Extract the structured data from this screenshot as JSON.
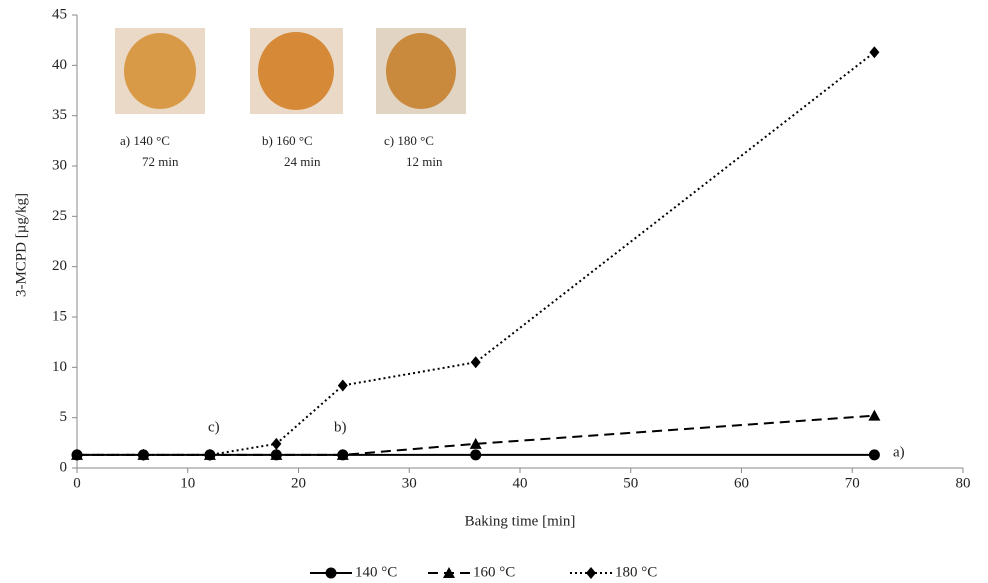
{
  "chart_data": {
    "type": "line",
    "x": [
      0,
      6,
      12,
      18,
      24,
      36,
      72
    ],
    "series": [
      {
        "name": "140 °C",
        "color": "#000000",
        "dash": "solid",
        "marker": "circle",
        "values": [
          1.3,
          1.3,
          1.3,
          1.3,
          1.3,
          1.3,
          1.3
        ]
      },
      {
        "name": "160 °C",
        "color": "#000000",
        "dash": "dashed",
        "marker": "triangle",
        "values": [
          1.3,
          1.3,
          1.3,
          1.3,
          1.3,
          2.4,
          5.2
        ]
      },
      {
        "name": "180 °C",
        "color": "#000000",
        "dash": "dotted",
        "marker": "diamond",
        "values": [
          1.3,
          1.3,
          1.3,
          2.4,
          8.2,
          10.5,
          41.3
        ]
      }
    ],
    "xlabel": "Baking time [min]",
    "ylabel": "3-MCPD [µg/kg]",
    "xlim": [
      0,
      80
    ],
    "xticks": [
      0,
      10,
      20,
      30,
      40,
      50,
      60,
      70,
      80
    ],
    "ylim": [
      0,
      45
    ],
    "yticks": [
      0,
      5,
      10,
      15,
      20,
      25,
      30,
      35,
      40,
      45
    ],
    "grid": false,
    "legend": "bottom",
    "annotations": [
      "a)",
      "b)",
      "c)"
    ],
    "insets": [
      {
        "label": "a) 140 °C",
        "time": "72 min"
      },
      {
        "label": "b) 160 °C",
        "time": "24 min"
      },
      {
        "label": "c) 180 °C",
        "time": "12 min"
      }
    ]
  }
}
